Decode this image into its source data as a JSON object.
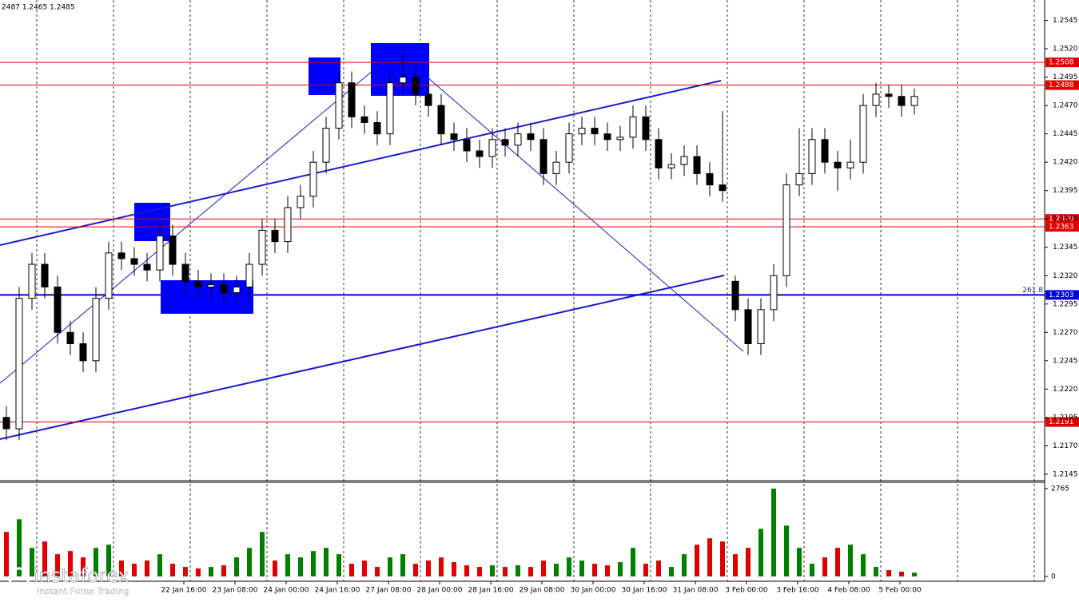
{
  "chart_data": {
    "type": "candlestick",
    "header": "2487 1.2465 1.2485",
    "watermark": "instaforex",
    "watermark_subtitle": "Instant Forex Trading",
    "ylim": [
      1.214,
      1.2563
    ],
    "yticks": [
      1.2145,
      {
        "value": 1.217,
        "label": "1.2170"
      },
      1.2195,
      {
        "value": 1.222,
        "label": "1.2220"
      },
      1.2245,
      {
        "value": 1.227,
        "label": "1.2270"
      },
      1.2295,
      {
        "value": 1.232,
        "label": "1.2320"
      },
      1.2345,
      {
        "value": 1.237,
        "label": "1.2370"
      },
      1.2395,
      {
        "value": 1.242,
        "label": "1.2420"
      },
      1.2445,
      {
        "value": 1.247,
        "label": "1.2470"
      },
      1.2495,
      {
        "value": 1.252,
        "label": "1.2520"
      },
      1.2545
    ],
    "x_labels": [
      "22 Jan 16:00",
      "23 Jan 08:00",
      "24 Jan 00:00",
      "24 Jan 16:00",
      "27 Jan 08:00",
      "28 Jan 00:00",
      "28 Jan 16:00",
      "29 Jan 08:00",
      "30 Jan 00:00",
      "30 Jan 16:00",
      "31 Jan 08:00",
      "3 Feb 00:00",
      "3 Feb 16:00",
      "4 Feb 08:00",
      "5 Feb 00:00"
    ],
    "levels": [
      {
        "value": 1.2508,
        "color": "#e00000"
      },
      {
        "value": 1.2488,
        "color": "#e00000"
      },
      {
        "value": 1.237,
        "label": "1.2370",
        "color": "#e00000"
      },
      {
        "value": 1.2363,
        "color": "#e00000"
      },
      {
        "value": 1.2191,
        "color": "#e00000"
      },
      {
        "value": 1.2303,
        "color": "#0000e0",
        "note": "261.8"
      }
    ],
    "open": [
      1.2195,
      1.2185,
      1.23,
      1.233,
      1.231,
      1.227,
      1.226,
      1.2245,
      1.23,
      1.234,
      1.2335,
      1.233,
      1.2325,
      1.2355,
      1.233,
      1.2315,
      1.231,
      1.2312,
      1.2305,
      1.231,
      1.233,
      1.236,
      1.235,
      1.238,
      1.239,
      1.242,
      1.245,
      1.249,
      1.246,
      1.2455,
      1.2445,
      1.249,
      1.2495,
      1.248,
      1.247,
      1.2445,
      1.244,
      1.243,
      1.2425,
      1.244,
      1.2435,
      1.2445,
      1.244,
      1.241,
      1.242,
      1.2445,
      1.245,
      1.2445,
      1.244,
      1.2442,
      1.246,
      1.244,
      1.2415,
      1.2418,
      1.2425,
      1.241,
      1.24,
      1.2315,
      1.229,
      1.226,
      1.229,
      1.232,
      1.24,
      1.241,
      1.244,
      1.242,
      1.2415,
      1.242,
      1.247,
      1.248,
      1.2478,
      1.247
    ],
    "high": [
      1.2205,
      1.231,
      1.234,
      1.234,
      1.232,
      1.228,
      1.227,
      1.231,
      1.235,
      1.235,
      1.2345,
      1.234,
      1.2365,
      1.2365,
      1.234,
      1.2325,
      1.2322,
      1.2322,
      1.232,
      1.234,
      1.237,
      1.237,
      1.239,
      1.24,
      1.243,
      1.246,
      1.25,
      1.25,
      1.247,
      1.2465,
      1.25,
      1.2518,
      1.2505,
      1.249,
      1.248,
      1.2455,
      1.245,
      1.244,
      1.245,
      1.245,
      1.2455,
      1.2455,
      1.245,
      1.243,
      1.2455,
      1.246,
      1.246,
      1.2455,
      1.2452,
      1.247,
      1.247,
      1.245,
      1.2428,
      1.2435,
      1.2435,
      1.242,
      1.2465,
      1.232,
      1.23,
      1.23,
      1.233,
      1.241,
      1.245,
      1.245,
      1.245,
      1.243,
      1.244,
      1.248,
      1.249,
      1.2488,
      1.2488,
      1.2485
    ],
    "low": [
      1.2175,
      1.2175,
      1.229,
      1.23,
      1.226,
      1.225,
      1.2235,
      1.2235,
      1.229,
      1.2325,
      1.232,
      1.2315,
      1.2315,
      1.232,
      1.2305,
      1.23,
      1.23,
      1.2295,
      1.2295,
      1.23,
      1.232,
      1.234,
      1.234,
      1.237,
      1.238,
      1.241,
      1.244,
      1.245,
      1.2445,
      1.2435,
      1.2435,
      1.248,
      1.247,
      1.246,
      1.2435,
      1.243,
      1.242,
      1.2415,
      1.2415,
      1.2425,
      1.2425,
      1.243,
      1.24,
      1.24,
      1.241,
      1.2435,
      1.2435,
      1.243,
      1.243,
      1.2432,
      1.243,
      1.2405,
      1.2405,
      1.2408,
      1.24,
      1.239,
      1.2385,
      1.228,
      1.225,
      1.225,
      1.228,
      1.231,
      1.239,
      1.24,
      1.241,
      1.2395,
      1.2405,
      1.241,
      1.246,
      1.2468,
      1.246,
      1.2462
    ],
    "close": [
      1.2185,
      1.23,
      1.233,
      1.231,
      1.227,
      1.226,
      1.2245,
      1.23,
      1.234,
      1.2335,
      1.233,
      1.2325,
      1.2355,
      1.233,
      1.2315,
      1.231,
      1.2312,
      1.2305,
      1.231,
      1.233,
      1.236,
      1.235,
      1.238,
      1.239,
      1.242,
      1.245,
      1.249,
      1.246,
      1.2455,
      1.2445,
      1.249,
      1.2495,
      1.248,
      1.247,
      1.2445,
      1.244,
      1.243,
      1.2425,
      1.244,
      1.2435,
      1.2445,
      1.244,
      1.241,
      1.242,
      1.2445,
      1.245,
      1.2445,
      1.244,
      1.2442,
      1.246,
      1.244,
      1.2415,
      1.2418,
      1.2425,
      1.241,
      1.24,
      1.2395,
      1.229,
      1.226,
      1.229,
      1.232,
      1.24,
      1.241,
      1.244,
      1.242,
      1.2415,
      1.242,
      1.247,
      1.248,
      1.2478,
      1.247,
      1.2478
    ],
    "volume": [
      1400,
      1800,
      900,
      1100,
      700,
      800,
      600,
      900,
      1000,
      500,
      400,
      500,
      700,
      400,
      300,
      250,
      300,
      350,
      600,
      900,
      1400,
      500,
      700,
      600,
      800,
      900,
      700,
      400,
      500,
      300,
      600,
      700,
      400,
      500,
      600,
      450,
      350,
      300,
      350,
      300,
      350,
      300,
      500,
      400,
      600,
      500,
      400,
      350,
      450,
      900,
      400,
      500,
      300,
      700,
      1000,
      1200,
      1100,
      700,
      900,
      1500,
      2765,
      1600,
      900,
      400,
      600,
      900,
      1000,
      700,
      300,
      200,
      150,
      120
    ],
    "volume_ylim": [
      0,
      2965
    ],
    "volume_yticks": [
      0,
      2765
    ],
    "up_color": "#008000",
    "down_color": "#e00000"
  }
}
